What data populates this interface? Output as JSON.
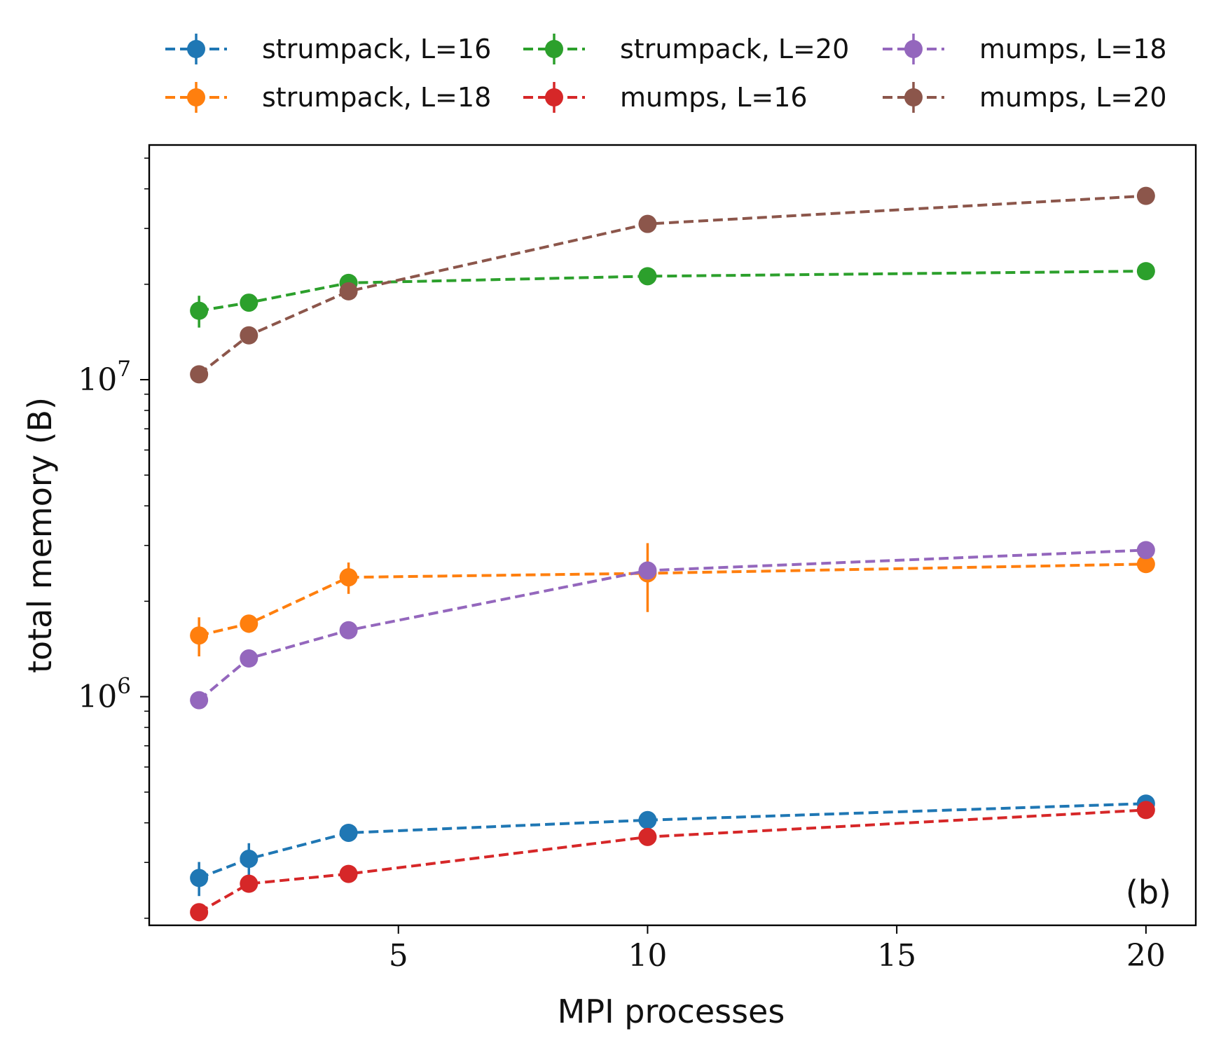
{
  "chart_data": {
    "type": "line",
    "title": "",
    "xlabel": "MPI processes",
    "ylabel": "total memory (B)",
    "yscale": "log",
    "xlim": [
      0.0,
      21.0
    ],
    "ylim": [
      190000,
      55000000
    ],
    "grid": false,
    "legend_position": "top",
    "panel_label": "(b)",
    "x_ticks": [
      {
        "value": 5,
        "label": "5"
      },
      {
        "value": 10,
        "label": "10"
      },
      {
        "value": 15,
        "label": "15"
      },
      {
        "value": 20,
        "label": "20"
      }
    ],
    "y_ticks": [
      {
        "value": 1000000,
        "label": "10",
        "exponent": "6"
      },
      {
        "value": 10000000,
        "label": "10",
        "exponent": "7"
      }
    ],
    "x": [
      1,
      2,
      4,
      10,
      20
    ],
    "series": [
      {
        "name": "strumpack, L=16",
        "color": "#1f77b4",
        "values": [
          268000,
          308000,
          372000,
          408000,
          460000
        ],
        "errors": [
          33000,
          37000,
          17000,
          12000,
          27000
        ]
      },
      {
        "name": "strumpack, L=18",
        "color": "#ff7f0e",
        "values": [
          1560000,
          1700000,
          2380000,
          2450000,
          2620000
        ],
        "errors": [
          220000,
          110000,
          270000,
          600000,
          60000
        ]
      },
      {
        "name": "strumpack, L=20",
        "color": "#2ca02c",
        "values": [
          16500000,
          17500000,
          20200000,
          21200000,
          22000000
        ],
        "errors": [
          1900000,
          700000,
          600000,
          500000,
          1000000
        ]
      },
      {
        "name": "mumps, L=16",
        "color": "#d62728",
        "values": [
          209000,
          257000,
          276000,
          361000,
          439000
        ],
        "errors": [
          0,
          0,
          0,
          0,
          0
        ]
      },
      {
        "name": "mumps, L=18",
        "color": "#9467bd",
        "values": [
          975000,
          1320000,
          1620000,
          2500000,
          2900000
        ],
        "errors": [
          0,
          0,
          0,
          0,
          0
        ]
      },
      {
        "name": "mumps, L=20",
        "color": "#8c564b",
        "values": [
          10400000,
          13800000,
          19000000,
          31000000,
          38000000
        ],
        "errors": [
          0,
          0,
          0,
          0,
          0
        ]
      }
    ]
  }
}
